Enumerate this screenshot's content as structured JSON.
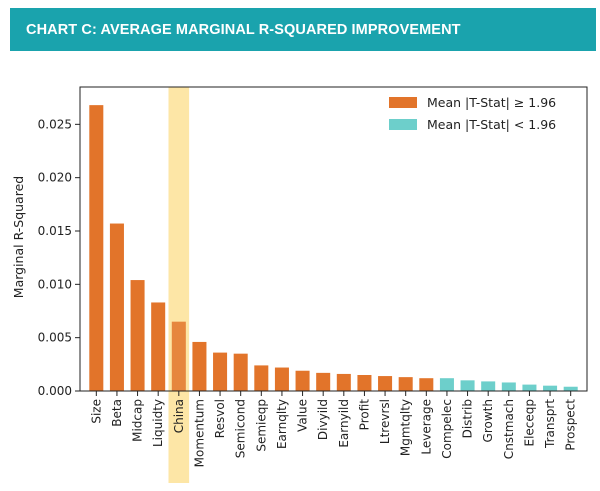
{
  "header": {
    "title": "CHART C: AVERAGE MARGINAL R-SQUARED IMPROVEMENT"
  },
  "colors": {
    "banner": "#1aa3ad",
    "significant": "#e2742a",
    "not_significant": "#6dcfcb",
    "highlight": "#fde6a6"
  },
  "chart_data": {
    "type": "bar",
    "ylabel": "Marginal R-Squared",
    "xlabel": "",
    "ylim": [
      0,
      0.0285
    ],
    "yticks": [
      "0.000",
      "0.005",
      "0.010",
      "0.015",
      "0.020",
      "0.025"
    ],
    "ytick_values": [
      0,
      0.005,
      0.01,
      0.015,
      0.02,
      0.025
    ],
    "grid": false,
    "legend_position": "top-right",
    "highlighted_category": "China",
    "categories": [
      "Size",
      "Beta",
      "Midcap",
      "Liquidty",
      "China",
      "Momentum",
      "Resvol",
      "Semicond",
      "Semieqp",
      "Earnqlty",
      "Value",
      "Divyild",
      "Earnyild",
      "Profit",
      "Ltrevrsl",
      "Mgmtqlty",
      "Leverage",
      "Compelec",
      "Distrib",
      "Growth",
      "Cnstmach",
      "Eleceqp",
      "Transprt",
      "Prospect"
    ],
    "series": [
      {
        "name": "Mean |T-Stat| ≥ 1.96",
        "color": "#e2742a",
        "values": [
          0.0268,
          0.0157,
          0.0104,
          0.0083,
          0.0065,
          0.0046,
          0.0036,
          0.0035,
          0.0024,
          0.0022,
          0.0019,
          0.0017,
          0.0016,
          0.0015,
          0.0014,
          0.0013,
          0.0012,
          null,
          null,
          null,
          null,
          null,
          null,
          null
        ]
      },
      {
        "name": "Mean |T-Stat| < 1.96",
        "color": "#6dcfcb",
        "values": [
          null,
          null,
          null,
          null,
          null,
          null,
          null,
          null,
          null,
          null,
          null,
          null,
          null,
          null,
          null,
          null,
          null,
          0.0012,
          0.001,
          0.0009,
          0.0008,
          0.0006,
          0.0005,
          0.0004
        ]
      }
    ]
  }
}
